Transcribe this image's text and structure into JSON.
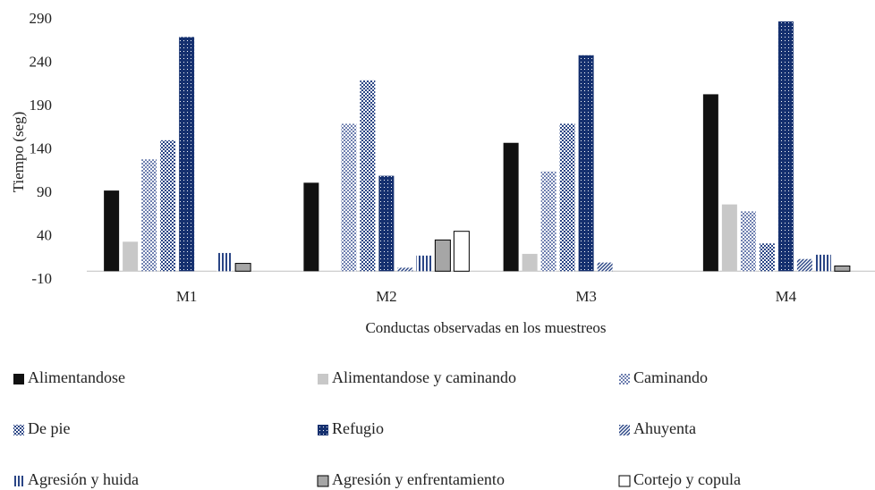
{
  "chart_data": {
    "type": "bar",
    "xlabel": "Conductas observadas en los muestreos",
    "ylabel": "Tiempo (seg)",
    "categories": [
      "M1",
      "M2",
      "M3",
      "M4"
    ],
    "ylim": [
      -10,
      290
    ],
    "yticks": [
      -10,
      40,
      90,
      140,
      190,
      240,
      290
    ],
    "grid": false,
    "legend": "bottom",
    "series": [
      {
        "name": "Alimentandose",
        "color": "#111111",
        "pattern": "solid",
        "values": [
          93,
          102,
          148,
          204
        ]
      },
      {
        "name": "Alimentandose y caminando",
        "color": "#c8c8c8",
        "pattern": "solid",
        "values": [
          34,
          0,
          20,
          77
        ]
      },
      {
        "name": "Caminando",
        "color": "#6f80b0",
        "pattern": "checker",
        "values": [
          129,
          170,
          115,
          69
        ]
      },
      {
        "name": "De pie",
        "color": "#2a4585",
        "pattern": "checker",
        "values": [
          151,
          220,
          170,
          32
        ]
      },
      {
        "name": "Refugio",
        "color": "#15306f",
        "pattern": "dots",
        "values": [
          270,
          110,
          249,
          288
        ]
      },
      {
        "name": "Ahuyenta",
        "color": "#2a4585",
        "pattern": "diagonal",
        "values": [
          0,
          4,
          10,
          14
        ]
      },
      {
        "name": "Agresión y huida",
        "color": "#2a4585",
        "pattern": "vertical",
        "values": [
          21,
          18,
          0,
          19
        ]
      },
      {
        "name": "Agresión y enfrentamiento",
        "color": "#a6a6a6",
        "pattern": "solid",
        "border": "#000000",
        "values": [
          9,
          36,
          0,
          6
        ]
      },
      {
        "name": "Cortejo y copula",
        "color": "#ffffff",
        "pattern": "solid",
        "border": "#000000",
        "values": [
          0,
          46,
          0,
          0
        ]
      }
    ]
  }
}
